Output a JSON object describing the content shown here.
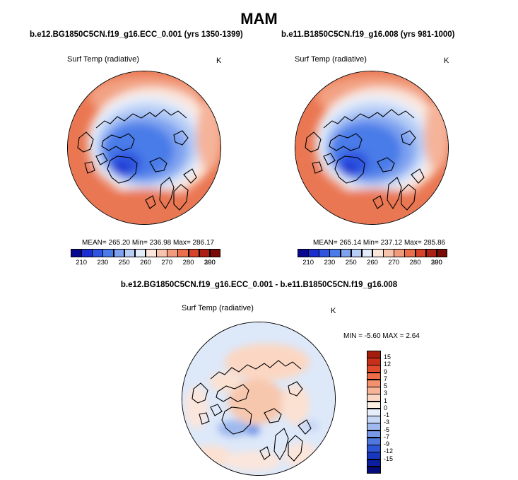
{
  "title": "MAM",
  "left_panel": {
    "case": "b.e12.BG1850C5CN.f19_g16.ECC_0.001 (yrs 1350-1399)",
    "variable": "Surf Temp (radiative)",
    "unit": "K",
    "stats": "MEAN= 265.20  Min= 236.98  Max= 286.17"
  },
  "right_panel": {
    "case": "b.e11.B1850C5CN.f19_g16.008 (yrs 981-1000)",
    "variable": "Surf Temp (radiative)",
    "unit": "K",
    "stats": "MEAN= 265.14  Min= 237.12  Max= 285.86"
  },
  "diff_title": "b.e12.BG1850C5CN.f19_g16.ECC_0.001 - b.e11.B1850C5CN.f19_g16.008",
  "diff_panel": {
    "variable": "Surf Temp (radiative)",
    "unit": "K",
    "stats": "MIN = -5.60 MAX =  2.64"
  },
  "abs_colorbar": {
    "colors": [
      "#08088f",
      "#1b2ecf",
      "#2f55e0",
      "#4a7be8",
      "#7ea2f0",
      "#b6cdf6",
      "#e3ecfb",
      "#fbe6dc",
      "#f8c3ac",
      "#f29a7c",
      "#ec6f4c",
      "#d8412a",
      "#ad1f14",
      "#7a0a06"
    ],
    "ticks": [
      "210",
      "230",
      "250",
      "260",
      "270",
      "280",
      "290",
      "300"
    ]
  },
  "diff_colorbar": {
    "colors": [
      "#a31d0d",
      "#c9301b",
      "#e04a2e",
      "#ec6c4a",
      "#f3906e",
      "#f7b497",
      "#fbd7c3",
      "#fdeee4",
      "#e6eefb",
      "#c6d6f5",
      "#9fb9ee",
      "#7698e6",
      "#4f77de",
      "#2f56d2",
      "#1738bd",
      "#0a1ea0",
      "#050c7a"
    ],
    "ticks": [
      "15",
      "12",
      "9",
      "7",
      "5",
      "3",
      "1",
      "0",
      "-1",
      "-3",
      "-5",
      "-7",
      "-9",
      "-12",
      "-15"
    ]
  }
}
